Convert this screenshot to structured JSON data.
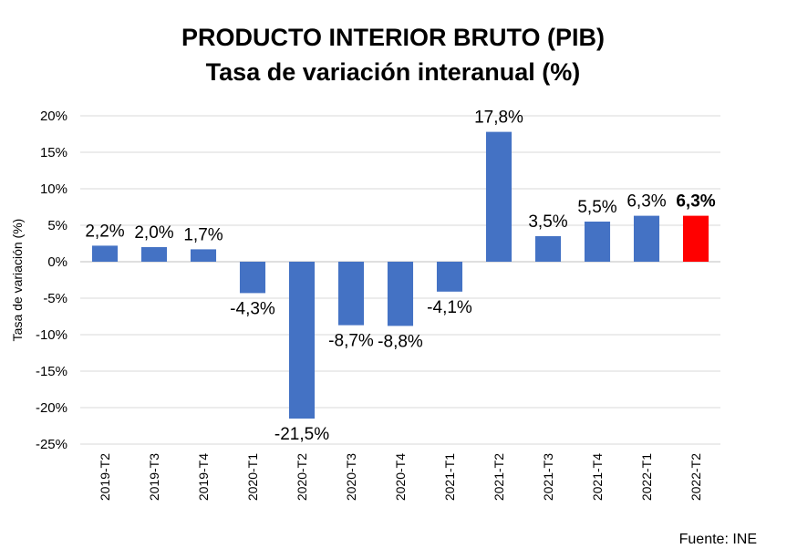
{
  "chart_data": {
    "type": "bar",
    "title": "PRODUCTO INTERIOR BRUTO (PIB)",
    "subtitle": "Tasa de variación interanual (%)",
    "xlabel": "",
    "ylabel": "Tasa de variación (%)",
    "ylim": [
      -25,
      20
    ],
    "ytick_step": 5,
    "ytick_format": "{v}%",
    "grid": true,
    "categories": [
      "2019-T2",
      "2019-T3",
      "2019-T4",
      "2020-T1",
      "2020-T2",
      "2020-T3",
      "2020-T4",
      "2021-T1",
      "2021-T2",
      "2021-T3",
      "2021-T4",
      "2022-T1",
      "2022-T2"
    ],
    "values": [
      2.2,
      2.0,
      1.7,
      -4.3,
      -21.5,
      -8.7,
      -8.8,
      -4.1,
      17.8,
      3.5,
      5.5,
      6.3,
      6.3
    ],
    "data_labels": [
      "2,2%",
      "2,0%",
      "1,7%",
      "-4,3%",
      "-21,5%",
      "-8,7%",
      "-8,8%",
      "-4,1%",
      "17,8%",
      "3,5%",
      "5,5%",
      "6,3%",
      "6,3%"
    ],
    "bar_color": "#4472c4",
    "highlight_color": "#ff0000",
    "highlight_index": 12,
    "source": "Fuente: INE"
  }
}
